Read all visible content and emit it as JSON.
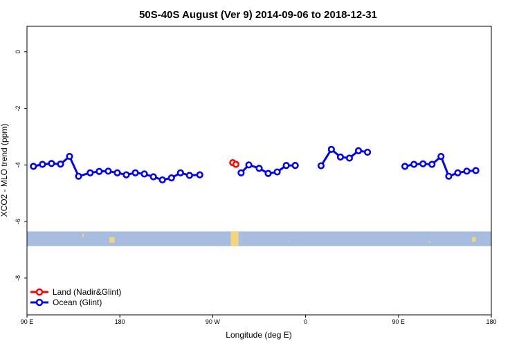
{
  "chart_data": {
    "type": "line",
    "title": "50S-40S August (Ver 9)   2014-09-06 to 2018-12-31",
    "xlabel": "Longitude (deg E)",
    "ylabel": "XCO2 - MLO trend (ppm)",
    "xlim": [
      90,
      450
    ],
    "ylim": [
      -9.3,
      0.9
    ],
    "x_ticks": [
      {
        "value": 90,
        "label": "90 E"
      },
      {
        "value": 162,
        "label": "180"
      },
      {
        "value": 234,
        "label": "90 W"
      },
      {
        "value": 306,
        "label": "0"
      },
      {
        "value": 378,
        "label": "90 E"
      },
      {
        "value": 450,
        "label": "180"
      }
    ],
    "y_ticks": [
      {
        "value": 0,
        "label": "0"
      },
      {
        "value": -2,
        "label": "-2"
      },
      {
        "value": -4,
        "label": "-4"
      },
      {
        "value": -6,
        "label": "-6"
      },
      {
        "value": -8,
        "label": "-8"
      }
    ],
    "grid": false,
    "legend_position": "bottom-left",
    "series": [
      {
        "name": "Land (Nadir&Glint)",
        "color": "#ff0000",
        "segments": [
          [
            [
              249.5,
              -3.92
            ],
            [
              252,
              -3.98
            ]
          ]
        ]
      },
      {
        "name": "Ocean (Glint)",
        "color": "#0000ee",
        "segments": [
          [
            [
              95,
              -4.05
            ],
            [
              102,
              -3.98
            ],
            [
              109,
              -3.95
            ],
            [
              116,
              -3.97
            ],
            [
              123,
              -3.7
            ],
            [
              130,
              -4.4
            ],
            [
              139,
              -4.28
            ],
            [
              146,
              -4.23
            ],
            [
              153,
              -4.22
            ],
            [
              160,
              -4.28
            ],
            [
              167,
              -4.35
            ],
            [
              174,
              -4.28
            ],
            [
              181,
              -4.32
            ],
            [
              188,
              -4.42
            ],
            [
              195,
              -4.53
            ],
            [
              202,
              -4.46
            ],
            [
              209,
              -4.28
            ],
            [
              216,
              -4.37
            ],
            [
              224,
              -4.35
            ]
          ],
          [
            [
              256,
              -4.28
            ],
            [
              262,
              -4.0
            ],
            [
              270,
              -4.12
            ],
            [
              277,
              -4.3
            ],
            [
              284,
              -4.25
            ],
            [
              291,
              -4.02
            ],
            [
              298,
              -4.02
            ]
          ],
          [
            [
              318,
              -4.03
            ],
            [
              326,
              -3.45
            ],
            [
              333,
              -3.72
            ],
            [
              340,
              -3.76
            ],
            [
              347,
              -3.5
            ],
            [
              354,
              -3.55
            ]
          ],
          [
            [
              383,
              -4.05
            ],
            [
              390,
              -3.98
            ],
            [
              397,
              -3.96
            ],
            [
              404,
              -3.98
            ],
            [
              411,
              -3.7
            ],
            [
              417,
              -4.4
            ],
            [
              424,
              -4.28
            ],
            [
              431,
              -4.22
            ],
            [
              438,
              -4.2
            ]
          ]
        ]
      }
    ],
    "band": {
      "y_range": [
        -6.87,
        -6.35
      ],
      "color": "#a7bddf",
      "land_color": "#f4d57c",
      "land_patches": [
        [
          133,
          134,
          -6.42,
          -6.55
        ],
        [
          154,
          158,
          -6.55,
          -6.75
        ],
        [
          248,
          254,
          -6.35,
          -6.87
        ],
        [
          293,
          294,
          -6.68,
          -6.7
        ],
        [
          401,
          403,
          -6.7,
          -6.73
        ],
        [
          435,
          438,
          -6.55,
          -6.72
        ]
      ]
    }
  }
}
